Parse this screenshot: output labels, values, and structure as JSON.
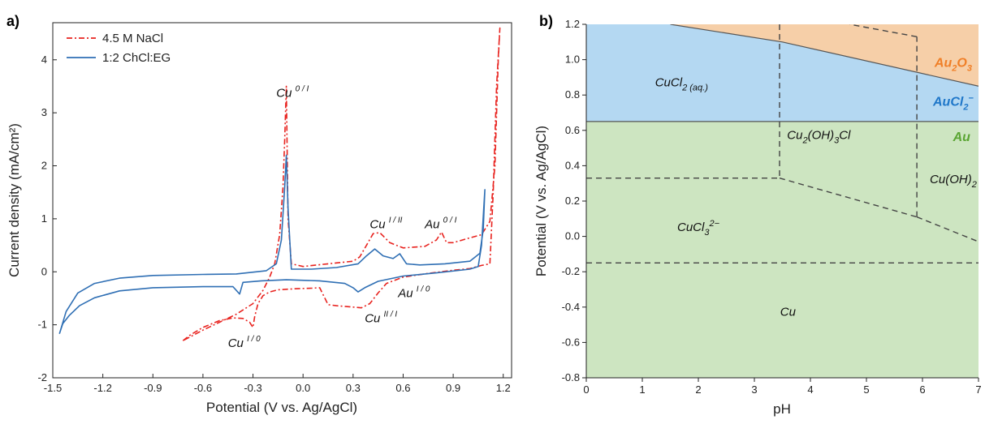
{
  "chart_data": [
    {
      "type": "line",
      "panel_label": "a)",
      "xlabel": "Potential (V vs. Ag/AgCl)",
      "ylabel": "Current density (mA/cm²)",
      "xlim": [
        -1.5,
        1.25
      ],
      "ylim": [
        -2,
        4.7
      ],
      "xticks": [
        "-1.5",
        "-1.2",
        "-0.9",
        "-0.6",
        "-0.3",
        "0.0",
        "0.3",
        "0.6",
        "0.9",
        "1.2"
      ],
      "yticks": [
        "-2",
        "-1",
        "0",
        "1",
        "2",
        "3",
        "4"
      ],
      "legend_position": "top-left",
      "series": [
        {
          "name": "4.5 M NaCl",
          "color": "#e8231f",
          "style": "dash-dot",
          "points": [
            [
              -0.72,
              -1.3
            ],
            [
              -0.68,
              -1.2
            ],
            [
              -0.6,
              -1.05
            ],
            [
              -0.5,
              -0.92
            ],
            [
              -0.42,
              -0.87
            ],
            [
              -0.36,
              -0.88
            ],
            [
              -0.32,
              -0.95
            ],
            [
              -0.3,
              -1.05
            ],
            [
              -0.29,
              -0.85
            ],
            [
              -0.27,
              -0.6
            ],
            [
              -0.24,
              -0.45
            ],
            [
              -0.2,
              -0.38
            ],
            [
              -0.15,
              -0.34
            ],
            [
              -0.05,
              -0.32
            ],
            [
              0.05,
              -0.31
            ],
            [
              0.1,
              -0.3
            ],
            [
              0.15,
              -0.62
            ],
            [
              0.2,
              -0.64
            ],
            [
              0.28,
              -0.66
            ],
            [
              0.35,
              -0.68
            ],
            [
              0.4,
              -0.6
            ],
            [
              0.45,
              -0.4
            ],
            [
              0.5,
              -0.22
            ],
            [
              0.6,
              -0.1
            ],
            [
              0.75,
              -0.03
            ],
            [
              0.9,
              0.03
            ],
            [
              1.0,
              0.06
            ],
            [
              1.07,
              0.12
            ],
            [
              1.12,
              0.15
            ],
            [
              1.14,
              1.5
            ],
            [
              1.16,
              3.5
            ],
            [
              1.18,
              4.6
            ],
            [
              1.17,
              4.0
            ],
            [
              1.15,
              2.0
            ],
            [
              1.12,
              0.95
            ],
            [
              1.07,
              0.7
            ],
            [
              1.0,
              0.64
            ],
            [
              0.9,
              0.55
            ],
            [
              0.86,
              0.55
            ],
            [
              0.83,
              0.75
            ],
            [
              0.8,
              0.6
            ],
            [
              0.73,
              0.48
            ],
            [
              0.6,
              0.45
            ],
            [
              0.52,
              0.55
            ],
            [
              0.46,
              0.74
            ],
            [
              0.42,
              0.72
            ],
            [
              0.38,
              0.5
            ],
            [
              0.34,
              0.28
            ],
            [
              0.3,
              0.2
            ],
            [
              0.15,
              0.15
            ],
            [
              0.0,
              0.1
            ],
            [
              -0.07,
              0.15
            ],
            [
              -0.09,
              1.0
            ],
            [
              -0.1,
              3.5
            ],
            [
              -0.11,
              2.5
            ],
            [
              -0.12,
              1.6
            ],
            [
              -0.14,
              0.7
            ],
            [
              -0.17,
              0.15
            ],
            [
              -0.2,
              -0.1
            ],
            [
              -0.24,
              -0.35
            ],
            [
              -0.3,
              -0.6
            ],
            [
              -0.4,
              -0.8
            ],
            [
              -0.5,
              -0.95
            ],
            [
              -0.6,
              -1.1
            ],
            [
              -0.72,
              -1.3
            ]
          ]
        },
        {
          "name": "1:2 ChCl:EG",
          "color": "#2f6fb4",
          "style": "solid",
          "points": [
            [
              -1.46,
              -1.17
            ],
            [
              -1.44,
              -0.98
            ],
            [
              -1.4,
              -0.82
            ],
            [
              -1.34,
              -0.64
            ],
            [
              -1.25,
              -0.49
            ],
            [
              -1.1,
              -0.36
            ],
            [
              -0.9,
              -0.3
            ],
            [
              -0.6,
              -0.28
            ],
            [
              -0.42,
              -0.28
            ],
            [
              -0.38,
              -0.42
            ],
            [
              -0.36,
              -0.2
            ],
            [
              -0.25,
              -0.17
            ],
            [
              -0.1,
              -0.15
            ],
            [
              0.1,
              -0.17
            ],
            [
              0.25,
              -0.22
            ],
            [
              0.3,
              -0.3
            ],
            [
              0.33,
              -0.38
            ],
            [
              0.37,
              -0.3
            ],
            [
              0.45,
              -0.18
            ],
            [
              0.6,
              -0.08
            ],
            [
              0.8,
              -0.02
            ],
            [
              1.0,
              0.05
            ],
            [
              1.05,
              0.1
            ],
            [
              1.07,
              0.5
            ],
            [
              1.09,
              1.55
            ],
            [
              1.08,
              0.8
            ],
            [
              1.06,
              0.35
            ],
            [
              1.0,
              0.2
            ],
            [
              0.85,
              0.15
            ],
            [
              0.7,
              0.13
            ],
            [
              0.62,
              0.15
            ],
            [
              0.58,
              0.34
            ],
            [
              0.54,
              0.25
            ],
            [
              0.48,
              0.3
            ],
            [
              0.43,
              0.43
            ],
            [
              0.38,
              0.3
            ],
            [
              0.33,
              0.15
            ],
            [
              0.2,
              0.08
            ],
            [
              0.05,
              0.05
            ],
            [
              -0.07,
              0.05
            ],
            [
              -0.09,
              1.2
            ],
            [
              -0.1,
              2.2
            ],
            [
              -0.11,
              1.6
            ],
            [
              -0.13,
              0.6
            ],
            [
              -0.16,
              0.15
            ],
            [
              -0.22,
              0.02
            ],
            [
              -0.4,
              -0.04
            ],
            [
              -0.6,
              -0.05
            ],
            [
              -0.9,
              -0.07
            ],
            [
              -1.1,
              -0.12
            ],
            [
              -1.25,
              -0.22
            ],
            [
              -1.35,
              -0.4
            ],
            [
              -1.42,
              -0.75
            ],
            [
              -1.46,
              -1.17
            ]
          ]
        }
      ],
      "annotations": [
        {
          "base": "Cu",
          "sup": "0 / I",
          "x": -0.16,
          "y": 3.3
        },
        {
          "base": "Cu",
          "sup": "I / II",
          "x": 0.4,
          "y": 0.82
        },
        {
          "base": "Au",
          "sup": "0 / I",
          "x": 0.73,
          "y": 0.82
        },
        {
          "base": "Au",
          "sup": "I / 0",
          "x": 0.57,
          "y": -0.48
        },
        {
          "base": "Cu",
          "sup": "II / I",
          "x": 0.37,
          "y": -0.95
        },
        {
          "base": "Cu",
          "sup": "I / 0",
          "x": -0.45,
          "y": -1.42
        }
      ]
    },
    {
      "type": "area",
      "panel_label": "b)",
      "xlabel": "pH",
      "ylabel": "Potential (V vs. Ag/AgCl)",
      "xlim": [
        0,
        7
      ],
      "ylim": [
        -0.8,
        1.2
      ],
      "xticks": [
        "0",
        "1",
        "2",
        "3",
        "4",
        "5",
        "6",
        "7"
      ],
      "yticks": [
        "-0.8",
        "-0.6",
        "-0.4",
        "-0.2",
        "0.0",
        "0.2",
        "0.4",
        "0.6",
        "0.8",
        "1.0",
        "1.2"
      ],
      "colors": {
        "au2o3": "#f6cfa8",
        "aucl2": "#b4d8f2",
        "au": "#cde5c1"
      },
      "regions": [
        {
          "label": "CuCl",
          "sub": "2 (aq.)",
          "sup": "",
          "x": 1.7,
          "y": 0.85,
          "bold": false,
          "color": "#111111"
        },
        {
          "label": "Cu",
          "sub": "2",
          "sup": "",
          "label2": "(OH)",
          "sub2": "3",
          "tail": "Cl",
          "x": 4.15,
          "y": 0.55,
          "bold": false,
          "color": "#111111"
        },
        {
          "label": "CuCl",
          "sub": "3",
          "sup": "2−",
          "x": 2.0,
          "y": 0.03,
          "bold": false,
          "color": "#111111"
        },
        {
          "label": "Cu(OH)",
          "sub": "2",
          "sup": "",
          "x": 6.55,
          "y": 0.3,
          "bold": false,
          "color": "#111111"
        },
        {
          "label": "Cu",
          "sub": "",
          "sup": "",
          "x": 3.6,
          "y": -0.45,
          "bold": false,
          "color": "#111111"
        },
        {
          "label": "Au",
          "sub": "2",
          "sup": "",
          "label2": "O",
          "sub2": "3",
          "tail": "",
          "x": 6.55,
          "y": 0.96,
          "bold": true,
          "color": "#f07f27"
        },
        {
          "label": "AuCl",
          "sub": "2",
          "sup": "−",
          "x": 6.55,
          "y": 0.74,
          "bold": true,
          "color": "#1f77c9"
        },
        {
          "label": "Au",
          "sub": "",
          "sup": "",
          "x": 6.7,
          "y": 0.54,
          "bold": true,
          "color": "#5aa533"
        }
      ],
      "au2o3_boundary": [
        [
          1.5,
          1.2
        ],
        [
          3.5,
          1.1
        ],
        [
          7.0,
          0.85
        ]
      ],
      "au_aucl2_boundary": [
        [
          0,
          0.65
        ],
        [
          7,
          0.65
        ]
      ],
      "cu_dashed_lines": [
        [
          [
            3.45,
            1.2
          ],
          [
            3.45,
            0.33
          ]
        ],
        [
          [
            0,
            0.33
          ],
          [
            3.45,
            0.33
          ]
        ],
        [
          [
            3.45,
            0.33
          ],
          [
            5.9,
            0.11
          ]
        ],
        [
          [
            5.9,
            0.11
          ],
          [
            7.0,
            -0.03
          ]
        ],
        [
          [
            5.9,
            0.11
          ],
          [
            5.9,
            1.13
          ]
        ],
        [
          [
            5.9,
            1.13
          ],
          [
            4.7,
            1.2
          ]
        ],
        [
          [
            0,
            -0.15
          ],
          [
            7,
            -0.15
          ]
        ]
      ]
    }
  ]
}
